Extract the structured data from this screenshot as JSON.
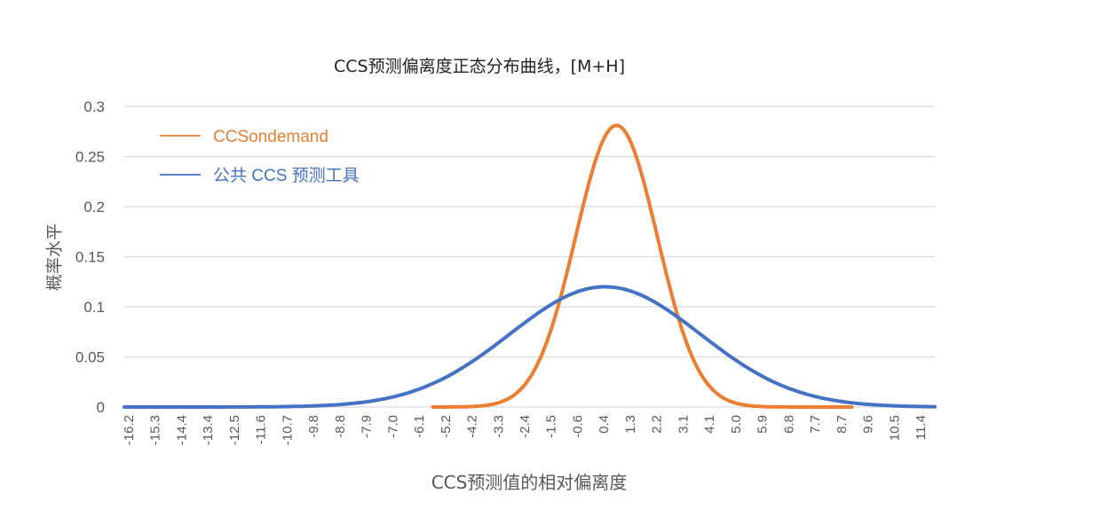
{
  "chart_data": {
    "type": "line",
    "title": "CCS预测偏离度正态分布曲线，[M+H]",
    "xlabel": "CCS预测值的相对偏离度",
    "ylabel": "概率水平",
    "ylim": [
      0,
      0.3
    ],
    "yticks": [
      "0",
      "0.05",
      "0.1",
      "0.15",
      "0.2",
      "0.25",
      "0.3"
    ],
    "grid": true,
    "legend_position": "upper-left (inside)",
    "categories": [
      "-16.2",
      "-15.3",
      "-14.4",
      "-13.4",
      "-12.5",
      "-11.6",
      "-10.7",
      "-9.8",
      "-8.8",
      "-7.9",
      "-7.0",
      "-6.1",
      "-5.2",
      "-4.2",
      "-3.3",
      "-2.4",
      "-1.5",
      "-0.6",
      "0.4",
      "1.3",
      "2.2",
      "3.1",
      "4.1",
      "5.0",
      "5.9",
      "6.8",
      "7.7",
      "8.7",
      "9.6",
      "10.5",
      "11.4"
    ],
    "series": [
      {
        "name": "CCSondemand",
        "color": "#ED7D31",
        "x_range": [
          -5.6,
          9.0
        ],
        "values": [
          null,
          null,
          null,
          null,
          null,
          null,
          null,
          null,
          null,
          null,
          null,
          null,
          0.0,
          0.0,
          0.002,
          0.012,
          0.051,
          0.148,
          0.274,
          0.261,
          0.128,
          0.033,
          0.004,
          0.0,
          0.0,
          0.0,
          0.0,
          0.0,
          null,
          null,
          null
        ]
      },
      {
        "name": "公共 CCS 预测工具",
        "color": "#4472C4",
        "x_range": [
          -16.4,
          12.0
        ],
        "values": [
          0.0,
          0.0,
          0.0,
          0.0,
          0.0,
          0.0001,
          0.0003,
          0.001,
          0.003,
          0.006,
          0.012,
          0.021,
          0.034,
          0.05,
          0.069,
          0.088,
          0.105,
          0.117,
          0.12,
          0.114,
          0.1,
          0.081,
          0.06,
          0.042,
          0.027,
          0.016,
          0.008,
          0.004,
          0.002,
          0.001,
          0.0
        ]
      }
    ]
  },
  "legend": {
    "items": [
      {
        "label": "CCSondemand",
        "color": "#ED7D31"
      },
      {
        "label": "公共 CCS 预测工具",
        "color": "#4472C4"
      }
    ]
  }
}
